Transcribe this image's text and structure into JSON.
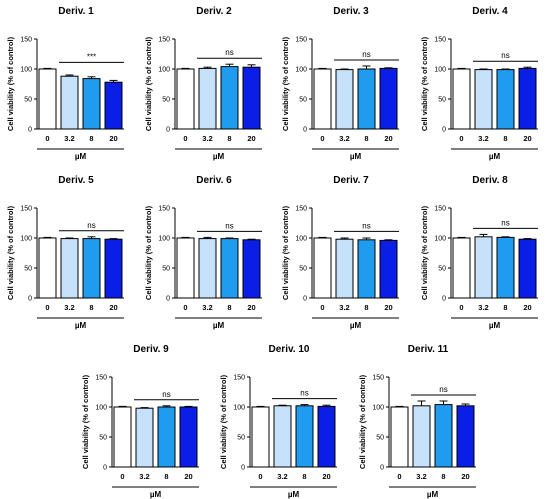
{
  "chart_data": [
    {
      "type": "bar",
      "title": "Deriv. 1",
      "categories": [
        "0",
        "3.2",
        "8",
        "20"
      ],
      "values": [
        100,
        88,
        84,
        78
      ],
      "errors": [
        1,
        2,
        3,
        3
      ],
      "ylabel": "Cell viability (% of control)",
      "xlabel": "µM",
      "ylim": [
        0,
        150
      ],
      "yticks": [
        "0",
        "50",
        "100",
        "150"
      ],
      "significance": "***"
    },
    {
      "type": "bar",
      "title": "Deriv. 2",
      "categories": [
        "0",
        "3.2",
        "8",
        "20"
      ],
      "values": [
        100,
        101,
        104,
        103
      ],
      "errors": [
        1,
        2,
        4,
        4
      ],
      "ylabel": "Cell viability (% of control)",
      "xlabel": "µM",
      "ylim": [
        0,
        150
      ],
      "yticks": [
        "0",
        "50",
        "100",
        "150"
      ],
      "significance": "ns"
    },
    {
      "type": "bar",
      "title": "Deriv. 3",
      "categories": [
        "0",
        "3.2",
        "8",
        "20"
      ],
      "values": [
        100,
        99,
        100,
        101
      ],
      "errors": [
        1,
        1,
        5,
        1
      ],
      "ylabel": "Cell viability (% of control)",
      "xlabel": "µM",
      "ylim": [
        0,
        150
      ],
      "yticks": [
        "0",
        "50",
        "100",
        "150"
      ],
      "significance": "ns"
    },
    {
      "type": "bar",
      "title": "Deriv. 4",
      "categories": [
        "0",
        "3.2",
        "8",
        "20"
      ],
      "values": [
        100,
        99,
        99,
        101
      ],
      "errors": [
        1,
        1,
        1,
        2
      ],
      "ylabel": "Cell viability (% of control)",
      "xlabel": "µM",
      "ylim": [
        0,
        150
      ],
      "yticks": [
        "0",
        "50",
        "100",
        "150"
      ],
      "significance": "ns"
    },
    {
      "type": "bar",
      "title": "Deriv. 5",
      "categories": [
        "0",
        "3.2",
        "8",
        "20"
      ],
      "values": [
        100,
        99,
        99,
        98
      ],
      "errors": [
        1,
        1,
        3,
        1
      ],
      "ylabel": "Cell viability (% of control)",
      "xlabel": "µM",
      "ylim": [
        0,
        150
      ],
      "yticks": [
        "0",
        "50",
        "100",
        "150"
      ],
      "significance": "ns"
    },
    {
      "type": "bar",
      "title": "Deriv. 6",
      "categories": [
        "0",
        "3.2",
        "8",
        "20"
      ],
      "values": [
        100,
        99,
        99,
        97
      ],
      "errors": [
        1,
        2,
        1,
        1
      ],
      "ylabel": "Cell viability (% of control)",
      "xlabel": "µM",
      "ylim": [
        0,
        150
      ],
      "yticks": [
        "0",
        "50",
        "100",
        "150"
      ],
      "significance": "ns"
    },
    {
      "type": "bar",
      "title": "Deriv. 7",
      "categories": [
        "0",
        "3.2",
        "8",
        "20"
      ],
      "values": [
        100,
        98,
        97,
        96
      ],
      "errors": [
        1,
        2,
        3,
        1
      ],
      "ylabel": "Cell viability (% of control)",
      "xlabel": "µM",
      "ylim": [
        0,
        150
      ],
      "yticks": [
        "0",
        "50",
        "100",
        "150"
      ],
      "significance": "ns"
    },
    {
      "type": "bar",
      "title": "Deriv. 8",
      "categories": [
        "0",
        "3.2",
        "8",
        "20"
      ],
      "values": [
        100,
        102,
        101,
        98
      ],
      "errors": [
        1,
        4,
        1,
        1
      ],
      "ylabel": "Cell viability (% of control)",
      "xlabel": "µM",
      "ylim": [
        0,
        150
      ],
      "yticks": [
        "0",
        "50",
        "100",
        "150"
      ],
      "significance": "ns"
    },
    {
      "type": "bar",
      "title": "Deriv. 9",
      "categories": [
        "0",
        "3.2",
        "8",
        "20"
      ],
      "values": [
        100,
        98,
        100,
        100
      ],
      "errors": [
        1,
        1,
        2,
        1
      ],
      "ylabel": "Cell viability (% of control)",
      "xlabel": "µM",
      "ylim": [
        0,
        150
      ],
      "yticks": [
        "0",
        "50",
        "100",
        "150"
      ],
      "significance": "ns"
    },
    {
      "type": "bar",
      "title": "Deriv. 10",
      "categories": [
        "0",
        "3.2",
        "8",
        "20"
      ],
      "values": [
        100,
        102,
        102,
        101
      ],
      "errors": [
        1,
        1,
        2,
        2
      ],
      "ylabel": "Cell viability (% of control)",
      "xlabel": "µM",
      "ylim": [
        0,
        150
      ],
      "yticks": [
        "0",
        "50",
        "100",
        "150"
      ],
      "significance": "ns"
    },
    {
      "type": "bar",
      "title": "Deriv. 11",
      "categories": [
        "0",
        "3.2",
        "8",
        "20"
      ],
      "values": [
        100,
        102,
        104,
        102
      ],
      "errors": [
        1,
        8,
        6,
        3
      ],
      "ylabel": "Cell viability (% of control)",
      "xlabel": "µM",
      "ylim": [
        0,
        150
      ],
      "yticks": [
        "0",
        "50",
        "100",
        "150"
      ],
      "significance": "ns"
    }
  ],
  "colors": {
    "bars": [
      "#ffffff",
      "#c6e2fa",
      "#1f9bef",
      "#0a1ee6"
    ],
    "edge": "#000000"
  }
}
